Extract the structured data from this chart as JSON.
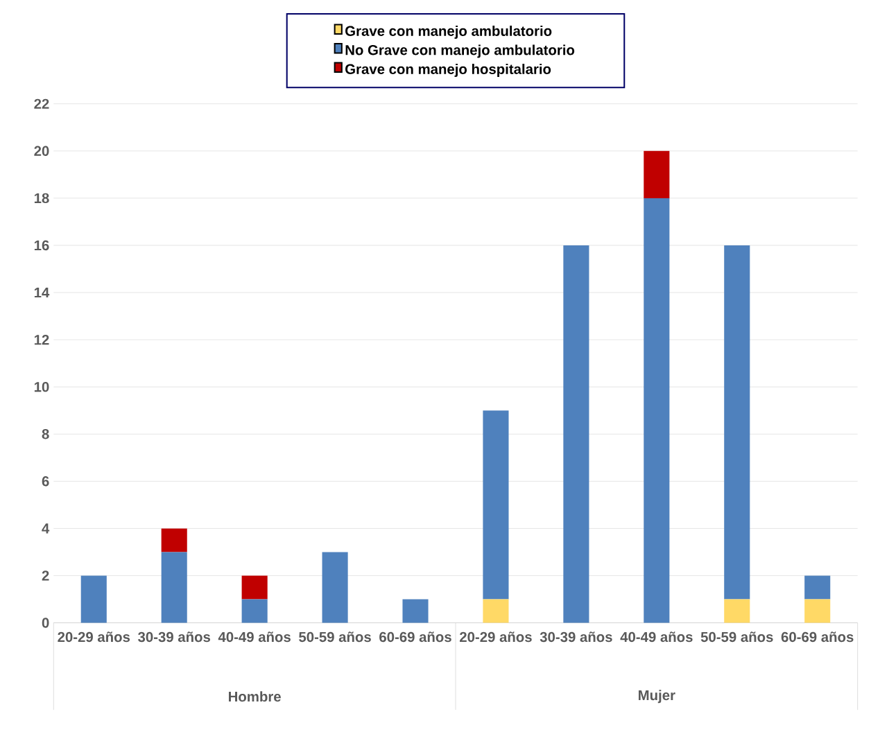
{
  "chart_data": {
    "type": "bar",
    "stacked": true,
    "categories": [
      "20-29 años",
      "30-39 años",
      "40-49 años",
      "50-59 años",
      "60-69 años",
      "20-29 años",
      "30-39 años",
      "40-49 años",
      "50-59 años",
      "60-69 años"
    ],
    "series": [
      {
        "name": "Grave con manejo ambulatorio",
        "color": "#ffd966",
        "values": [
          0,
          0,
          0,
          0,
          0,
          1,
          0,
          0,
          1,
          1
        ]
      },
      {
        "name": "No Grave con manejo ambulatorio",
        "color": "#4f81bd",
        "values": [
          2,
          3,
          1,
          3,
          1,
          8,
          16,
          18,
          15,
          1
        ]
      },
      {
        "name": "Grave con manejo hospitalario",
        "color": "#c00000",
        "values": [
          0,
          1,
          1,
          0,
          0,
          0,
          0,
          2,
          0,
          0
        ]
      }
    ],
    "ylim": [
      0,
      22
    ],
    "yticks": [
      0,
      2,
      4,
      6,
      8,
      10,
      12,
      14,
      16,
      18,
      20,
      22
    ],
    "grid": "y",
    "legend": "top",
    "annotations": [
      "Hombre",
      "Mujer"
    ]
  }
}
